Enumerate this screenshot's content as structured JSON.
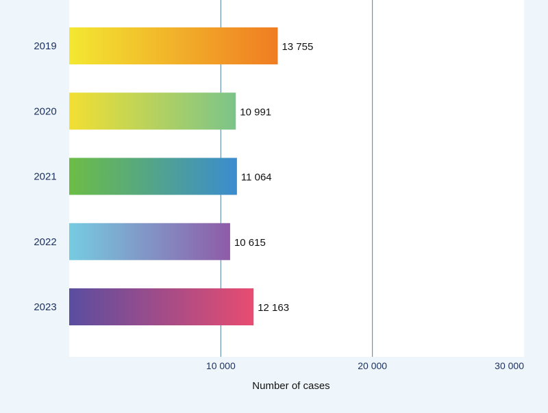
{
  "chart_data": {
    "type": "bar",
    "orientation": "horizontal",
    "categories": [
      "2019",
      "2020",
      "2021",
      "2022",
      "2023"
    ],
    "values": [
      13755,
      10991,
      11064,
      10615,
      12163
    ],
    "value_labels": [
      "13 755",
      "10 991",
      "11 064",
      "10 615",
      "12 163"
    ],
    "xlim": [
      0,
      30000
    ],
    "xticks": [
      10000,
      20000,
      30000
    ],
    "xtick_labels": [
      "10 000",
      "20 000",
      "30 000"
    ],
    "xlabel": "Number of cases",
    "ylabel": "",
    "title": "",
    "grid": "vertical",
    "bar_gradients": [
      [
        "#f3e832",
        "#f07c22"
      ],
      [
        "#f2df32",
        "#7bc48a"
      ],
      [
        "#6cbd45",
        "#3b8ccf"
      ],
      [
        "#76cce1",
        "#8e5ba8"
      ],
      [
        "#5a4da0",
        "#e84c71"
      ]
    ],
    "colors": {
      "background": "#eef6fb",
      "plot_background": "#ffffff",
      "gridline": "#4f7f99",
      "category_text": "#1b2f5e",
      "tick_text": "#1b2f5e",
      "value_text": "#111111"
    }
  }
}
